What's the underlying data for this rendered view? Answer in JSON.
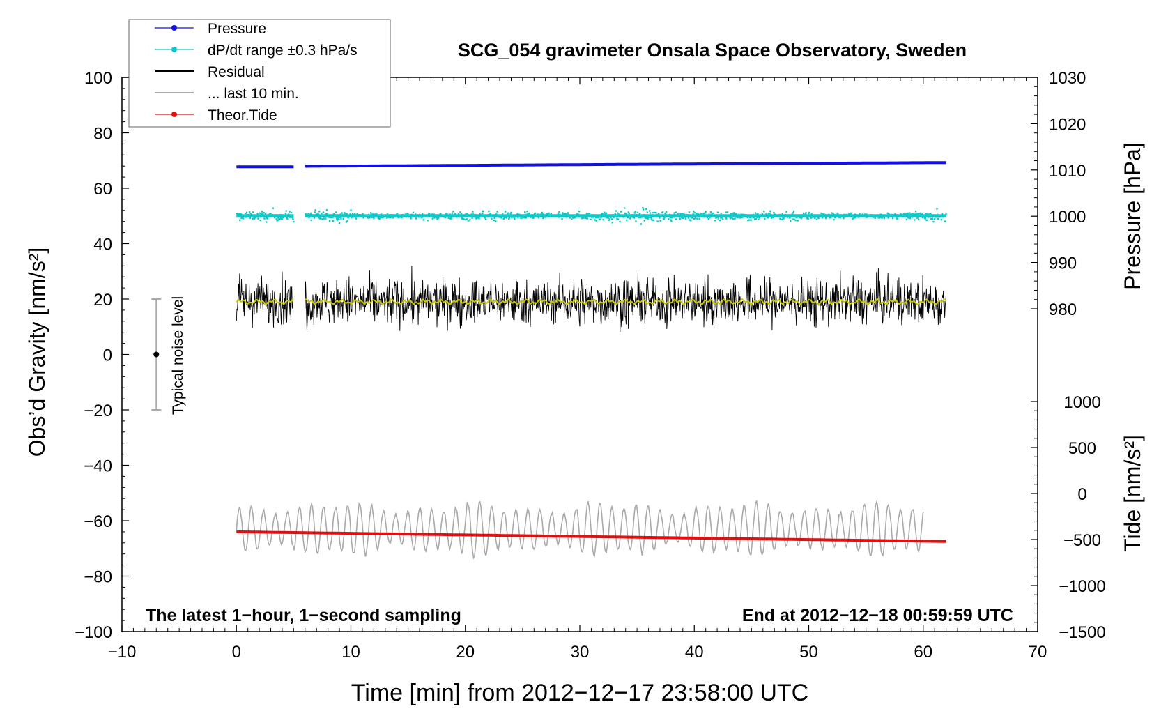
{
  "chart_data": {
    "type": "line",
    "title": "SCG_054 gravimeter Onsala Space Observatory, Sweden",
    "xlabel": "Time [min] from 2012−12−17 23:58:00 UTC",
    "ylabel_left": "Obs’d Gravity [nm/s²]",
    "ylabel_right_top": "Pressure [hPa]",
    "ylabel_right_bottom": "Tide [nm/s²]",
    "xlim": [
      -10,
      70
    ],
    "ylim_left": [
      -100,
      100
    ],
    "ylim_pressure": [
      980,
      1030
    ],
    "ylim_tide": [
      -1500,
      1000
    ],
    "x_ticks": [
      -10,
      0,
      10,
      20,
      30,
      40,
      50,
      60,
      70
    ],
    "x_tick_labels": [
      "−10",
      "0",
      "10",
      "20",
      "30",
      "40",
      "50",
      "60",
      "70"
    ],
    "y_left_ticks": [
      -100,
      -80,
      -60,
      -40,
      -20,
      0,
      20,
      40,
      60,
      80,
      100
    ],
    "y_left_tick_labels": [
      "−100",
      "−80",
      "−60",
      "−40",
      "−20",
      "0",
      "20",
      "40",
      "60",
      "80",
      "100"
    ],
    "pressure_ticks": [
      980,
      990,
      1000,
      1010,
      1020,
      1030
    ],
    "pressure_tick_labels": [
      "980",
      "990",
      "1000",
      "1010",
      "1020",
      "1030"
    ],
    "tide_ticks": [
      -1500,
      -1000,
      -500,
      0,
      500,
      1000
    ],
    "tide_tick_labels": [
      "−1500",
      "−1000",
      "−500",
      "0",
      "500",
      "1000"
    ],
    "legend": {
      "position": "top-left",
      "entries": [
        {
          "label": "Pressure",
          "color": "#1010e0",
          "marker": true
        },
        {
          "label": "dP/dt range ±0.3 hPa/s",
          "color": "#10c8c8",
          "marker": true
        },
        {
          "label": "Residual",
          "color": "#000000",
          "marker": false
        },
        {
          "label": "... last 10 min.",
          "color": "#aaaaaa",
          "marker": false
        },
        {
          "label": "Theor.Tide",
          "color": "#e01010",
          "marker": true
        }
      ]
    },
    "annotations": {
      "bottom_left": "The latest 1−hour, 1−second sampling",
      "bottom_right": "End at 2012−12−18 00:59:59 UTC",
      "noise_bar_label": "Typical noise level"
    },
    "noise_bar": {
      "x": -7,
      "y": 0,
      "low": -20,
      "high": 20
    },
    "gap": [
      5,
      6
    ],
    "series": [
      {
        "name": "Pressure",
        "color": "#1010e0",
        "axis": "pressure",
        "x": [
          0,
          5,
          6,
          20,
          40,
          62
        ],
        "values": [
          1010.7,
          1010.7,
          1010.8,
          1011.0,
          1011.3,
          1011.6
        ]
      },
      {
        "name": "dP/dt range",
        "color": "#10c8c8",
        "axis": "left",
        "center": 50,
        "spread_min": 1.5,
        "spread_max": 5.5,
        "x_range": [
          0,
          62
        ]
      },
      {
        "name": "Residual",
        "color": "#000000",
        "axis": "left",
        "center": 19,
        "spread_min": 5,
        "spread_max": 16,
        "x_range": [
          0,
          62
        ]
      },
      {
        "name": "Residual smoothed",
        "color": "#c8c800",
        "axis": "left",
        "center": 19,
        "x_range": [
          0,
          62
        ]
      },
      {
        "name": "... last 10 min.",
        "color": "#aaaaaa",
        "axis": "left",
        "center": -63,
        "spread_min": -74,
        "spread_max": -48,
        "x_range": [
          0,
          60
        ]
      },
      {
        "name": "Theor.Tide",
        "color": "#e01010",
        "axis": "left",
        "x": [
          0,
          62
        ],
        "values": [
          -64,
          -67.5
        ]
      }
    ]
  }
}
